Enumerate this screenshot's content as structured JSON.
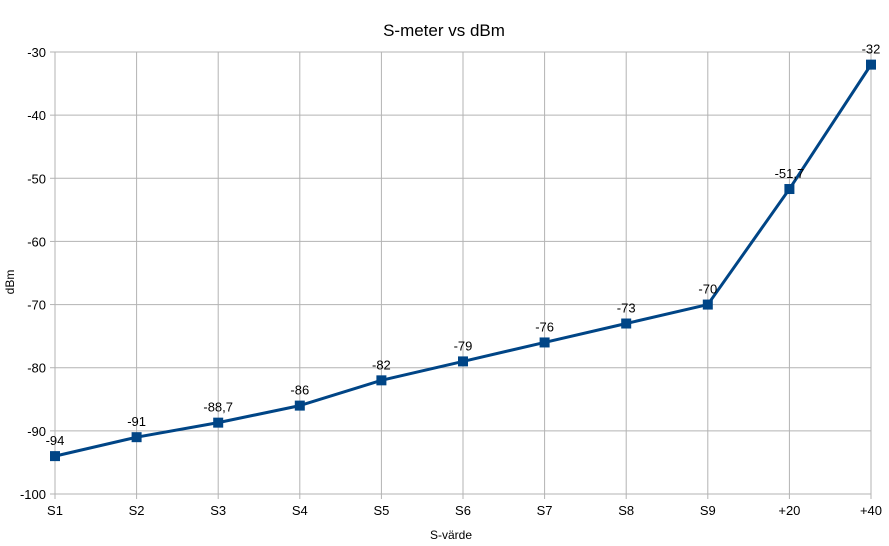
{
  "chart_data": {
    "type": "line",
    "title": "S-meter vs dBm",
    "xlabel": "S-värde",
    "ylabel": "dBm",
    "categories": [
      "S1",
      "S2",
      "S3",
      "S4",
      "S5",
      "S6",
      "S7",
      "S8",
      "S9",
      "+20",
      "+40"
    ],
    "series": [
      {
        "values": [
          -94,
          -91,
          -88.7,
          -86,
          -82,
          -79,
          -76,
          -73,
          -70,
          -51.7,
          -32
        ],
        "labels": [
          "-94",
          "-91",
          "-88,7",
          "-86",
          "-82",
          "-79",
          "-76",
          "-73",
          "-70",
          "-51,7",
          "-32"
        ],
        "color": "#004586"
      }
    ],
    "ylim": [
      -100,
      -30
    ],
    "yticks": [
      -30,
      -40,
      -50,
      -60,
      -70,
      -80,
      -90,
      -100
    ],
    "ytick_labels": [
      "-30",
      "-40",
      "-50",
      "-60",
      "-70",
      "-80",
      "-90",
      "-100"
    ],
    "grid": true,
    "legend": "none"
  }
}
